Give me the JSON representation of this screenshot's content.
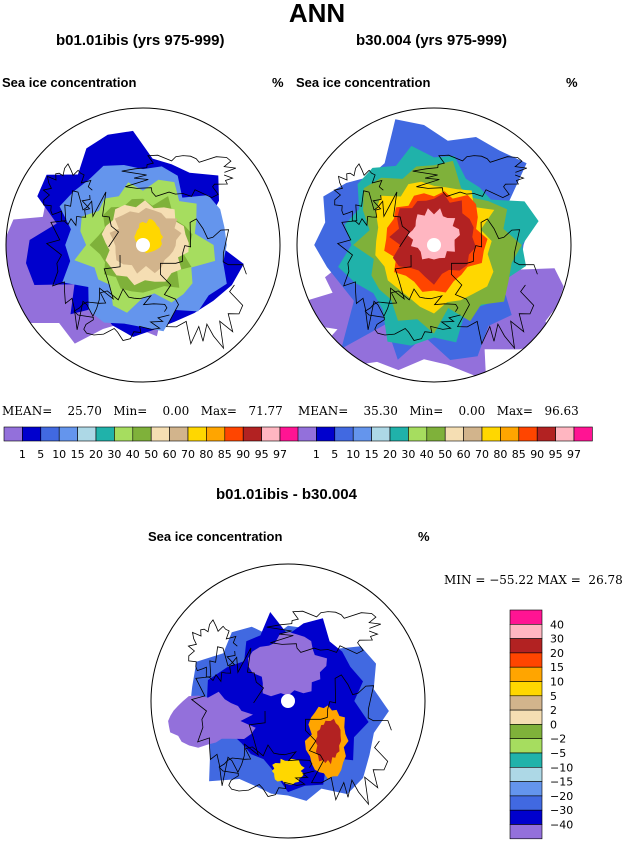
{
  "title": "ANN",
  "left_panel": {
    "title": "b01.01ibis (yrs 975-999)",
    "variable": "Sea ice concentration",
    "units": "%",
    "stats": {
      "mean_label": "MEAN=",
      "mean": "25.70",
      "min_label": "Min=",
      "min": "0.00",
      "max_label": "Max=",
      "max": "71.77"
    }
  },
  "right_panel": {
    "title": "b30.004 (yrs 975-999)",
    "variable": "Sea ice concentration",
    "units": "%",
    "stats": {
      "mean_label": "MEAN=",
      "mean": "35.30",
      "min_label": "Min=",
      "min": "0.00",
      "max_label": "Max=",
      "max": "96.63"
    }
  },
  "diff_panel": {
    "title": "b01.01ibis - b30.004",
    "variable": "Sea ice concentration",
    "units": "%",
    "stats_text": "MIN = −55.22 MAX =  26.78"
  },
  "chart_data": [
    {
      "type": "heatmap",
      "title": "b01.01ibis (yrs 975-999)",
      "variable": "Sea ice concentration",
      "units": "%",
      "projection": "polar stereographic (Arctic)",
      "mean": 25.7,
      "min": 0.0,
      "max": 71.77,
      "colorbar_levels": [
        1,
        5,
        10,
        15,
        20,
        30,
        40,
        50,
        60,
        70,
        80,
        85,
        90,
        95,
        97
      ],
      "colorbar_colors": [
        "#9370db",
        "#0000cd",
        "#4169e1",
        "#6495ed",
        "#add8e6",
        "#20b2aa",
        "#a6dd5f",
        "#7fb13a",
        "#f5deb3",
        "#d2b48c",
        "#ffd700",
        "#ffa500",
        "#ff4500",
        "#b22222",
        "#ffb6c1",
        "#ff1493"
      ]
    },
    {
      "type": "heatmap",
      "title": "b30.004 (yrs 975-999)",
      "variable": "Sea ice concentration",
      "units": "%",
      "projection": "polar stereographic (Arctic)",
      "mean": 35.3,
      "min": 0.0,
      "max": 96.63,
      "colorbar_levels": [
        1,
        5,
        10,
        15,
        20,
        30,
        40,
        50,
        60,
        70,
        80,
        85,
        90,
        95,
        97
      ],
      "colorbar_colors": [
        "#9370db",
        "#0000cd",
        "#4169e1",
        "#6495ed",
        "#add8e6",
        "#20b2aa",
        "#a6dd5f",
        "#7fb13a",
        "#f5deb3",
        "#d2b48c",
        "#ffd700",
        "#ffa500",
        "#ff4500",
        "#b22222",
        "#ffb6c1",
        "#ff1493"
      ]
    },
    {
      "type": "heatmap",
      "title": "b01.01ibis - b30.004",
      "variable": "Sea ice concentration",
      "units": "%",
      "projection": "polar stereographic (Arctic)",
      "min": -55.22,
      "max": 26.78,
      "colorbar_levels": [
        40,
        30,
        20,
        15,
        10,
        5,
        2,
        0,
        -2,
        -5,
        -10,
        -15,
        -20,
        -30,
        -40
      ],
      "colorbar_level_labels": [
        "40",
        "30",
        "20",
        "15",
        "10",
        "5",
        "2",
        "0",
        "−2",
        "−5",
        "−10",
        "−15",
        "−20",
        "−30",
        "−40"
      ],
      "colorbar_colors_top_to_bottom": [
        "#ff1493",
        "#ffb6c1",
        "#b22222",
        "#ff4500",
        "#ffa500",
        "#ffd700",
        "#d2b48c",
        "#f5deb3",
        "#7fb13a",
        "#a6dd5f",
        "#20b2aa",
        "#add8e6",
        "#6495ed",
        "#4169e1",
        "#0000cd",
        "#9370db"
      ]
    }
  ]
}
